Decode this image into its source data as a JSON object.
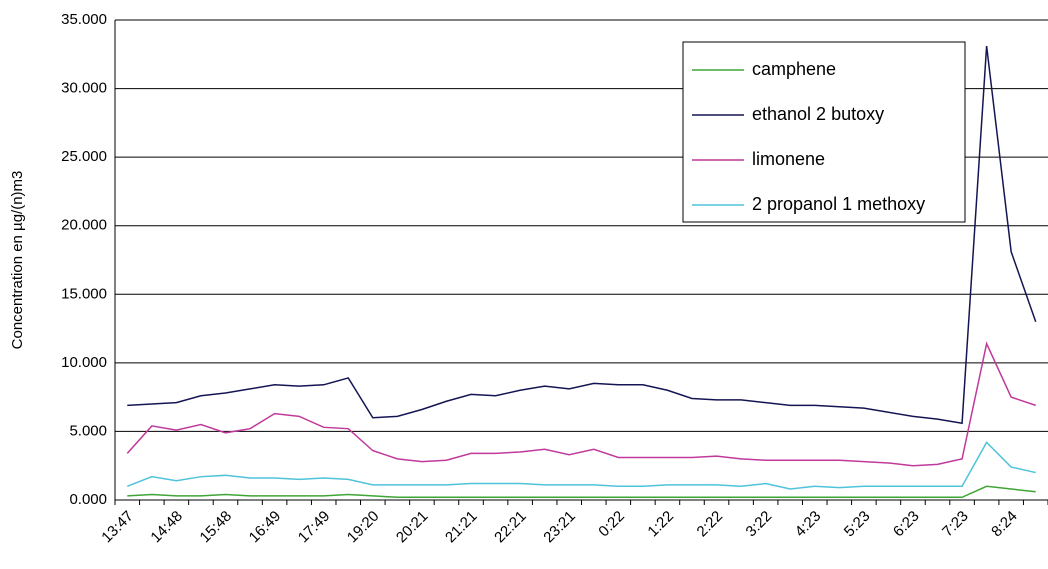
{
  "chart_data": {
    "type": "line",
    "y_label": "Concentration en µg/(n)m3",
    "categories": [
      "13:47",
      null,
      "14:48",
      null,
      "15:48",
      null,
      "16:49",
      null,
      "17:49",
      null,
      "19:20",
      null,
      "20:21",
      null,
      "21:21",
      null,
      "22:21",
      null,
      "23:21",
      null,
      "0:22",
      null,
      "1:22",
      null,
      "2:22",
      null,
      "3:22",
      null,
      "4:23",
      null,
      "5:23",
      null,
      "6:23",
      null,
      "7:23",
      null,
      "8:24",
      null
    ],
    "series": [
      {
        "name": "camphene",
        "color": "#3fa535",
        "values": [
          0.3,
          0.4,
          0.3,
          0.3,
          0.4,
          0.3,
          0.3,
          0.3,
          0.3,
          0.4,
          0.3,
          0.2,
          0.2,
          0.2,
          0.2,
          0.2,
          0.2,
          0.2,
          0.2,
          0.2,
          0.2,
          0.2,
          0.2,
          0.2,
          0.2,
          0.2,
          0.2,
          0.2,
          0.2,
          0.2,
          0.2,
          0.2,
          0.2,
          0.2,
          0.2,
          1.0,
          0.8,
          0.6
        ]
      },
      {
        "name": "ethanol 2 butoxy",
        "color": "#151553",
        "values": [
          6.9,
          7.0,
          7.1,
          7.6,
          7.8,
          8.1,
          8.4,
          8.3,
          8.4,
          8.9,
          6.0,
          6.1,
          6.6,
          7.2,
          7.7,
          7.6,
          8.0,
          8.3,
          8.1,
          8.5,
          8.4,
          8.4,
          8.0,
          7.4,
          7.3,
          7.3,
          7.1,
          6.9,
          6.9,
          6.8,
          6.7,
          6.4,
          6.1,
          5.9,
          5.6,
          33.1,
          18.1,
          13.0
        ]
      },
      {
        "name": "limonene",
        "color": "#c0399b",
        "values": [
          3.4,
          5.4,
          5.1,
          5.5,
          4.9,
          5.2,
          6.3,
          6.1,
          5.3,
          5.2,
          3.6,
          3.0,
          2.8,
          2.9,
          3.4,
          3.4,
          3.5,
          3.7,
          3.3,
          3.7,
          3.1,
          3.1,
          3.1,
          3.1,
          3.2,
          3.0,
          2.9,
          2.9,
          2.9,
          2.9,
          2.8,
          2.7,
          2.5,
          2.6,
          3.0,
          11.4,
          7.5,
          6.9
        ]
      },
      {
        "name": "2 propanol 1 methoxy",
        "color": "#4fc3d9",
        "values": [
          1.0,
          1.7,
          1.4,
          1.7,
          1.8,
          1.6,
          1.6,
          1.5,
          1.6,
          1.5,
          1.1,
          1.1,
          1.1,
          1.1,
          1.2,
          1.2,
          1.2,
          1.1,
          1.1,
          1.1,
          1.0,
          1.0,
          1.1,
          1.1,
          1.1,
          1.0,
          1.2,
          0.8,
          1.0,
          0.9,
          1.0,
          1.0,
          1.0,
          1.0,
          1.0,
          4.2,
          2.4,
          2.0
        ]
      }
    ],
    "ylim": [
      0,
      35
    ],
    "yticks": [
      {
        "value": 0,
        "label": "0.000"
      },
      {
        "value": 5,
        "label": "5.000"
      },
      {
        "value": 10,
        "label": "10.000"
      },
      {
        "value": 15,
        "label": "15.000"
      },
      {
        "value": 20,
        "label": "20.000"
      },
      {
        "value": 25,
        "label": "25.000"
      },
      {
        "value": 30,
        "label": "30.000"
      },
      {
        "value": 35,
        "label": "35.000"
      }
    ],
    "grid": true
  }
}
